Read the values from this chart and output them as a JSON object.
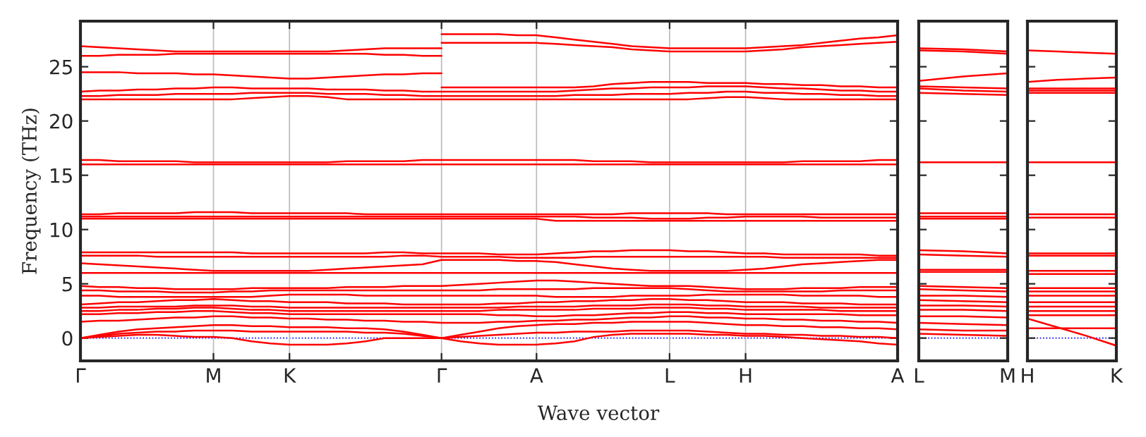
{
  "chart_data": [
    {
      "type": "line",
      "ylabel": "Frequency (THz)",
      "xlabel": "Wave vector",
      "grid": "x",
      "legend": false,
      "categories": [
        "Γ",
        null,
        null,
        null,
        null,
        null,
        null,
        "M",
        null,
        null,
        null,
        "K",
        null,
        null,
        null,
        null,
        null,
        null,
        null,
        "Γ",
        null,
        null,
        null,
        null,
        "A",
        null,
        null,
        null,
        null,
        null,
        null,
        "L",
        null,
        null,
        null,
        "H",
        null,
        null,
        null,
        null,
        null,
        null,
        null,
        "A"
      ],
      "ylim": [
        -2.1,
        29.2
      ],
      "yticks": [
        0,
        5,
        10,
        15,
        20,
        25
      ],
      "ref_lines": [
        {
          "axis": "y",
          "value": 0,
          "color": "#0000ff",
          "line_style": "dotted"
        }
      ],
      "series": [
        {
          "color": "#ff0000",
          "values": [
            26.9,
            26.8,
            26.7,
            26.6,
            26.5,
            26.4,
            26.4,
            26.4,
            26.4,
            26.4,
            26.4,
            26.4,
            26.4,
            26.4,
            26.5,
            26.6,
            26.7,
            26.7,
            26.7,
            26.7,
            null,
            null,
            null,
            null,
            null,
            null,
            null,
            null,
            null,
            null,
            null,
            null,
            null,
            null,
            null,
            null,
            null,
            null,
            null,
            null,
            null,
            null,
            null,
            null
          ]
        },
        {
          "color": "#ff0000",
          "values": [
            26.0,
            26.0,
            26.1,
            26.1,
            26.1,
            26.2,
            26.2,
            26.2,
            26.2,
            26.2,
            26.2,
            26.2,
            26.2,
            26.2,
            26.2,
            26.2,
            26.1,
            26.1,
            26.0,
            26.0,
            null,
            null,
            null,
            null,
            null,
            null,
            null,
            null,
            null,
            null,
            null,
            null,
            null,
            null,
            null,
            null,
            null,
            null,
            null,
            null,
            null,
            null,
            null,
            null
          ]
        },
        {
          "color": "#ff0000",
          "values": [
            24.5,
            24.5,
            24.5,
            24.4,
            24.4,
            24.4,
            24.3,
            24.3,
            24.2,
            24.1,
            24.0,
            23.9,
            23.9,
            24.0,
            24.1,
            24.2,
            24.3,
            24.3,
            24.4,
            24.4,
            null,
            null,
            null,
            null,
            null,
            null,
            null,
            null,
            null,
            null,
            null,
            null,
            null,
            null,
            null,
            null,
            null,
            null,
            null,
            null,
            null,
            null,
            null,
            null
          ]
        },
        {
          "color": "#ff0000",
          "values": [
            null,
            null,
            null,
            null,
            null,
            null,
            null,
            null,
            null,
            null,
            null,
            null,
            null,
            null,
            null,
            null,
            null,
            null,
            null,
            28.0,
            28.0,
            28.0,
            28.0,
            27.9,
            27.9,
            27.7,
            27.5,
            27.3,
            27.1,
            26.9,
            26.8,
            26.7,
            26.7,
            26.7,
            26.7,
            26.7,
            26.8,
            26.9,
            27.0,
            27.2,
            27.4,
            27.6,
            27.7,
            27.9
          ]
        },
        {
          "color": "#ff0000",
          "values": [
            null,
            null,
            null,
            null,
            null,
            null,
            null,
            null,
            null,
            null,
            null,
            null,
            null,
            null,
            null,
            null,
            null,
            null,
            null,
            27.2,
            27.2,
            27.2,
            27.2,
            27.2,
            27.2,
            27.1,
            27.0,
            26.9,
            26.8,
            26.6,
            26.5,
            26.4,
            26.4,
            26.4,
            26.4,
            26.4,
            26.5,
            26.6,
            26.8,
            26.9,
            27.0,
            27.1,
            27.2,
            27.3
          ]
        },
        {
          "color": "#ff0000",
          "values": [
            null,
            null,
            null,
            null,
            null,
            null,
            null,
            null,
            null,
            null,
            null,
            null,
            null,
            null,
            null,
            null,
            null,
            null,
            null,
            23.1,
            23.1,
            23.1,
            23.1,
            23.1,
            23.1,
            23.1,
            23.1,
            23.2,
            23.4,
            23.5,
            23.6,
            23.6,
            23.6,
            23.5,
            23.5,
            23.5,
            23.4,
            23.4,
            23.3,
            23.3,
            23.2,
            23.2,
            23.1,
            23.1
          ]
        },
        {
          "color": "#ff0000",
          "values": [
            22.7,
            22.8,
            22.8,
            22.9,
            22.9,
            23.0,
            23.0,
            23.1,
            23.1,
            23.0,
            23.0,
            23.0,
            23.0,
            22.9,
            22.9,
            22.9,
            22.8,
            22.8,
            22.7,
            22.7,
            22.7,
            22.7,
            22.7,
            22.7,
            22.7,
            22.7,
            22.8,
            22.9,
            23.0,
            23.0,
            23.1,
            23.1,
            23.1,
            23.2,
            23.2,
            23.2,
            23.1,
            23.0,
            23.0,
            22.9,
            22.8,
            22.8,
            22.7,
            22.7
          ]
        },
        {
          "color": "#ff0000",
          "values": [
            22.3,
            22.3,
            22.4,
            22.4,
            22.4,
            22.5,
            22.5,
            22.5,
            22.5,
            22.6,
            22.6,
            22.6,
            22.6,
            22.5,
            22.5,
            22.5,
            22.4,
            22.4,
            22.3,
            22.3,
            22.3,
            22.3,
            22.3,
            22.3,
            22.3,
            22.3,
            22.4,
            22.4,
            22.4,
            22.5,
            22.5,
            22.5,
            22.6,
            22.6,
            22.7,
            22.7,
            22.6,
            22.6,
            22.5,
            22.5,
            22.4,
            22.4,
            22.3,
            22.3
          ]
        },
        {
          "color": "#ff0000",
          "values": [
            22.0,
            22.0,
            22.0,
            22.0,
            22.0,
            22.0,
            22.0,
            22.0,
            22.0,
            22.1,
            22.2,
            22.3,
            22.3,
            22.2,
            22.0,
            22.0,
            22.0,
            22.0,
            22.0,
            22.0,
            22.0,
            22.0,
            22.0,
            22.0,
            22.0,
            22.0,
            22.0,
            22.0,
            22.0,
            22.0,
            22.0,
            22.0,
            22.0,
            22.1,
            22.2,
            22.2,
            22.1,
            22.0,
            22.0,
            22.0,
            22.0,
            22.0,
            22.0,
            22.0
          ]
        },
        {
          "color": "#ff0000",
          "values": [
            16.4,
            16.4,
            16.3,
            16.3,
            16.3,
            16.3,
            16.2,
            16.2,
            16.2,
            16.2,
            16.2,
            16.2,
            16.2,
            16.2,
            16.3,
            16.3,
            16.3,
            16.3,
            16.4,
            16.4,
            16.4,
            16.4,
            16.4,
            16.4,
            16.4,
            16.4,
            16.4,
            16.3,
            16.3,
            16.3,
            16.2,
            16.2,
            16.2,
            16.2,
            16.2,
            16.2,
            16.2,
            16.2,
            16.3,
            16.3,
            16.3,
            16.3,
            16.4,
            16.4
          ]
        },
        {
          "color": "#ff0000",
          "values": [
            16.0,
            16.0,
            16.0,
            16.0,
            16.0,
            16.0,
            16.0,
            16.0,
            16.0,
            16.0,
            16.0,
            16.0,
            16.0,
            16.0,
            16.0,
            16.0,
            16.0,
            16.0,
            16.0,
            16.0,
            16.0,
            16.0,
            16.0,
            16.0,
            16.0,
            16.0,
            16.0,
            16.0,
            16.0,
            16.0,
            16.0,
            16.0,
            16.0,
            16.0,
            16.0,
            16.0,
            16.0,
            16.0,
            16.0,
            16.0,
            16.0,
            16.0,
            16.0,
            16.0
          ]
        },
        {
          "color": "#ff0000",
          "values": [
            11.4,
            11.4,
            11.5,
            11.5,
            11.5,
            11.5,
            11.6,
            11.6,
            11.6,
            11.5,
            11.5,
            11.5,
            11.5,
            11.5,
            11.5,
            11.4,
            11.4,
            11.4,
            11.4,
            11.4,
            11.4,
            11.4,
            11.4,
            11.4,
            11.4,
            11.4,
            11.4,
            11.4,
            11.4,
            11.5,
            11.5,
            11.5,
            11.5,
            11.5,
            11.4,
            11.4,
            11.4,
            11.4,
            11.4,
            11.4,
            11.4,
            11.4,
            11.4,
            11.4
          ]
        },
        {
          "color": "#ff0000",
          "values": [
            11.2,
            11.2,
            11.2,
            11.2,
            11.2,
            11.2,
            11.2,
            11.2,
            11.2,
            11.2,
            11.2,
            11.2,
            11.2,
            11.2,
            11.2,
            11.2,
            11.2,
            11.2,
            11.2,
            11.2,
            11.2,
            11.2,
            11.2,
            11.2,
            11.2,
            11.2,
            11.2,
            11.1,
            11.1,
            11.1,
            11.0,
            11.0,
            11.0,
            11.1,
            11.1,
            11.2,
            11.2,
            11.2,
            11.2,
            11.1,
            11.1,
            11.1,
            11.1,
            11.1
          ]
        },
        {
          "color": "#ff0000",
          "values": [
            11.0,
            11.0,
            11.0,
            11.0,
            11.0,
            11.0,
            11.0,
            11.0,
            11.0,
            11.0,
            11.0,
            11.0,
            11.0,
            11.0,
            11.0,
            11.0,
            11.0,
            11.0,
            11.0,
            11.0,
            11.0,
            11.0,
            11.0,
            11.0,
            11.0,
            10.8,
            10.8,
            10.8,
            10.8,
            10.8,
            10.8,
            10.8,
            10.8,
            10.8,
            10.8,
            10.8,
            10.8,
            10.8,
            10.8,
            10.8,
            10.8,
            10.8,
            10.8,
            10.8
          ]
        },
        {
          "color": "#ff0000",
          "values": [
            7.9,
            7.9,
            7.9,
            7.9,
            7.9,
            7.9,
            7.9,
            7.9,
            7.9,
            7.8,
            7.8,
            7.8,
            7.8,
            7.8,
            7.8,
            7.8,
            7.9,
            7.9,
            7.8,
            7.8,
            7.8,
            7.8,
            7.7,
            7.7,
            7.7,
            7.8,
            7.9,
            8.0,
            8.0,
            8.1,
            8.1,
            8.1,
            8.0,
            8.0,
            7.9,
            7.8,
            7.8,
            7.7,
            7.7,
            7.7,
            7.7,
            7.7,
            7.6,
            7.6
          ]
        },
        {
          "color": "#ff0000",
          "values": [
            7.6,
            7.6,
            7.6,
            7.6,
            7.5,
            7.5,
            7.5,
            7.5,
            7.5,
            7.5,
            7.5,
            7.5,
            7.5,
            7.5,
            7.5,
            7.5,
            7.5,
            7.6,
            7.6,
            7.5,
            7.5,
            7.5,
            7.5,
            7.4,
            7.4,
            7.4,
            7.4,
            7.5,
            7.5,
            7.5,
            7.5,
            7.5,
            7.5,
            7.5,
            7.5,
            7.5,
            7.5,
            7.4,
            7.4,
            7.4,
            7.4,
            7.4,
            7.4,
            7.4
          ]
        },
        {
          "color": "#ff0000",
          "values": [
            6.9,
            6.8,
            6.7,
            6.6,
            6.5,
            6.4,
            6.3,
            6.2,
            6.2,
            6.2,
            6.2,
            6.2,
            6.2,
            6.3,
            6.4,
            6.5,
            6.6,
            6.7,
            6.8,
            7.2,
            7.2,
            7.2,
            7.2,
            7.1,
            7.1,
            7.0,
            6.8,
            6.6,
            6.4,
            6.3,
            6.2,
            6.2,
            6.2,
            6.2,
            6.2,
            6.3,
            6.4,
            6.6,
            6.8,
            6.9,
            7.0,
            7.1,
            7.2,
            7.2
          ]
        },
        {
          "color": "#ff0000",
          "values": [
            6.0,
            6.0,
            6.0,
            6.0,
            6.0,
            6.0,
            6.0,
            6.0,
            6.0,
            6.0,
            6.0,
            6.0,
            6.0,
            6.0,
            6.0,
            6.0,
            6.0,
            6.0,
            6.0,
            6.0,
            6.0,
            6.0,
            6.0,
            6.0,
            6.0,
            6.0,
            6.0,
            6.0,
            6.0,
            6.0,
            6.0,
            6.0,
            6.0,
            6.0,
            6.0,
            6.0,
            6.0,
            6.0,
            6.0,
            6.0,
            6.0,
            6.0,
            6.0,
            6.0
          ]
        },
        {
          "color": "#ff0000",
          "values": [
            4.8,
            4.7,
            4.7,
            4.6,
            4.6,
            4.5,
            4.5,
            4.5,
            4.5,
            4.6,
            4.6,
            4.6,
            4.6,
            4.6,
            4.7,
            4.7,
            4.7,
            4.8,
            4.8,
            4.8,
            4.9,
            5.0,
            5.1,
            5.2,
            5.3,
            5.3,
            5.2,
            5.1,
            5.0,
            4.9,
            4.8,
            4.8,
            4.8,
            4.7,
            4.6,
            4.5,
            4.5,
            4.5,
            4.6,
            4.6,
            4.6,
            4.7,
            4.7,
            4.7
          ]
        },
        {
          "color": "#ff0000",
          "values": [
            4.4,
            4.4,
            4.3,
            4.3,
            4.3,
            4.2,
            4.2,
            4.2,
            4.3,
            4.3,
            4.4,
            4.4,
            4.4,
            4.4,
            4.4,
            4.4,
            4.4,
            4.4,
            4.4,
            4.4,
            4.4,
            4.4,
            4.5,
            4.5,
            4.5,
            4.5,
            4.5,
            4.6,
            4.6,
            4.6,
            4.6,
            4.6,
            4.5,
            4.4,
            4.3,
            4.3,
            4.3,
            4.3,
            4.3,
            4.3,
            4.4,
            4.4,
            4.4,
            4.4
          ]
        },
        {
          "color": "#ff0000",
          "values": [
            3.9,
            3.9,
            3.8,
            3.8,
            3.8,
            3.8,
            3.8,
            3.8,
            3.8,
            3.8,
            3.9,
            4.0,
            4.0,
            4.0,
            4.0,
            3.9,
            3.9,
            3.9,
            3.9,
            3.9,
            3.9,
            3.9,
            3.9,
            3.9,
            3.9,
            3.8,
            3.8,
            3.8,
            3.8,
            3.9,
            3.9,
            3.9,
            3.9,
            4.0,
            4.0,
            4.0,
            4.0,
            4.0,
            3.9,
            3.9,
            3.9,
            3.9,
            3.8,
            3.8
          ]
        },
        {
          "color": "#ff0000",
          "values": [
            3.1,
            3.2,
            3.3,
            3.3,
            3.4,
            3.5,
            3.5,
            3.6,
            3.5,
            3.4,
            3.4,
            3.3,
            3.3,
            3.3,
            3.2,
            3.2,
            3.2,
            3.1,
            3.1,
            3.1,
            3.1,
            3.1,
            3.2,
            3.2,
            3.3,
            3.3,
            3.4,
            3.4,
            3.5,
            3.5,
            3.6,
            3.6,
            3.5,
            3.5,
            3.4,
            3.3,
            3.3,
            3.3,
            3.2,
            3.2,
            3.2,
            3.1,
            3.1,
            3.1
          ]
        },
        {
          "color": "#ff0000",
          "values": [
            2.8,
            2.8,
            2.9,
            2.9,
            2.9,
            2.9,
            3.0,
            3.0,
            3.0,
            2.9,
            2.9,
            2.8,
            2.8,
            2.8,
            2.8,
            2.8,
            2.8,
            2.8,
            2.8,
            2.8,
            2.8,
            2.8,
            2.8,
            2.9,
            2.9,
            2.9,
            2.9,
            3.0,
            3.0,
            3.0,
            3.1,
            3.1,
            3.1,
            3.0,
            3.0,
            2.9,
            2.9,
            2.9,
            2.9,
            2.8,
            2.8,
            2.8,
            2.8,
            2.8
          ]
        },
        {
          "color": "#ff0000",
          "values": [
            2.5,
            2.5,
            2.6,
            2.6,
            2.7,
            2.7,
            2.8,
            2.8,
            2.7,
            2.6,
            2.6,
            2.5,
            2.5,
            2.5,
            2.5,
            2.5,
            2.5,
            2.5,
            2.5,
            2.5,
            2.5,
            2.5,
            2.6,
            2.6,
            2.6,
            2.6,
            2.6,
            2.7,
            2.7,
            2.7,
            2.8,
            2.8,
            2.8,
            2.7,
            2.7,
            2.6,
            2.6,
            2.6,
            2.6,
            2.6,
            2.5,
            2.5,
            2.5,
            2.5
          ]
        },
        {
          "color": "#ff0000",
          "values": [
            2.2,
            2.2,
            2.3,
            2.3,
            2.4,
            2.4,
            2.5,
            2.5,
            2.4,
            2.3,
            2.3,
            2.2,
            2.2,
            2.2,
            2.2,
            2.2,
            2.2,
            2.2,
            2.2,
            2.2,
            2.2,
            2.2,
            2.1,
            2.1,
            2.0,
            2.0,
            2.1,
            2.1,
            2.2,
            2.3,
            2.3,
            2.4,
            2.4,
            2.3,
            2.3,
            2.2,
            2.2,
            2.2,
            2.2,
            2.2,
            2.2,
            2.1,
            2.1,
            2.1
          ]
        },
        {
          "color": "#ff0000",
          "values": [
            1.5,
            1.6,
            1.6,
            1.7,
            1.8,
            1.9,
            1.9,
            2.0,
            2.0,
            1.9,
            1.9,
            1.8,
            1.8,
            1.7,
            1.7,
            1.6,
            1.6,
            1.5,
            1.5,
            1.4,
            1.4,
            1.4,
            1.5,
            1.5,
            1.6,
            1.6,
            1.7,
            1.7,
            1.8,
            1.9,
            1.9,
            2.0,
            2.0,
            1.9,
            1.9,
            1.8,
            1.8,
            1.7,
            1.7,
            1.6,
            1.6,
            1.5,
            1.5,
            1.4
          ]
        },
        {
          "color": "#ff0000",
          "values": [
            0.0,
            0.3,
            0.6,
            0.8,
            0.9,
            1.0,
            1.1,
            1.2,
            1.2,
            1.1,
            1.1,
            1.0,
            1.0,
            1.0,
            0.9,
            0.9,
            0.8,
            0.6,
            0.3,
            0.0,
            0.3,
            0.6,
            0.9,
            1.1,
            1.2,
            1.3,
            1.3,
            1.4,
            1.4,
            1.5,
            1.5,
            1.5,
            1.5,
            1.4,
            1.3,
            1.2,
            1.2,
            1.1,
            1.1,
            1.0,
            1.0,
            0.9,
            0.9,
            0.8
          ]
        },
        {
          "color": "#ff0000",
          "values": [
            0.0,
            0.2,
            0.4,
            0.5,
            0.6,
            0.6,
            0.7,
            0.7,
            0.7,
            0.6,
            0.6,
            0.6,
            0.6,
            0.6,
            0.6,
            0.5,
            0.5,
            0.4,
            0.2,
            0.0,
            0.1,
            0.2,
            0.3,
            0.4,
            0.5,
            0.5,
            0.6,
            0.6,
            0.6,
            0.7,
            0.7,
            0.7,
            0.7,
            0.6,
            0.5,
            0.4,
            0.4,
            0.3,
            0.3,
            0.2,
            0.2,
            0.1,
            0.1,
            0.0
          ]
        },
        {
          "color": "#ff0000",
          "values": [
            0.0,
            0.1,
            0.2,
            0.3,
            0.3,
            0.2,
            0.1,
            0.1,
            0.0,
            -0.3,
            -0.5,
            -0.6,
            -0.6,
            -0.6,
            -0.5,
            -0.3,
            0.0,
            0.0,
            0.0,
            0.0,
            -0.3,
            -0.5,
            -0.6,
            -0.6,
            -0.6,
            -0.5,
            -0.3,
            0.1,
            0.3,
            0.4,
            0.4,
            0.4,
            0.4,
            0.3,
            0.3,
            0.2,
            0.2,
            0.1,
            0.0,
            -0.1,
            -0.2,
            -0.3,
            -0.5,
            -0.6
          ]
        }
      ]
    },
    {
      "type": "line",
      "legend": false,
      "tick_labels": "x",
      "categories": [
        "L",
        null,
        "M"
      ],
      "ylim": [
        -2.1,
        29.2
      ],
      "yticks": [
        0,
        5,
        10,
        15,
        20,
        25
      ],
      "ref_lines": [
        {
          "axis": "y",
          "value": 0,
          "color": "#0000ff",
          "line_style": "dotted"
        }
      ],
      "series": [
        {
          "color": "#ff0000",
          "values": [
            26.7,
            26.6,
            26.4
          ]
        },
        {
          "color": "#ff0000",
          "values": [
            26.5,
            26.4,
            26.2
          ]
        },
        {
          "color": "#ff0000",
          "values": [
            23.7,
            24.1,
            24.4
          ]
        },
        {
          "color": "#ff0000",
          "values": [
            23.2,
            23.1,
            23.0
          ]
        },
        {
          "color": "#ff0000",
          "values": [
            23.0,
            22.8,
            22.7
          ]
        },
        {
          "color": "#ff0000",
          "values": [
            22.6,
            22.5,
            22.4
          ]
        },
        {
          "color": "#ff0000",
          "values": [
            16.2,
            16.2,
            16.2
          ]
        },
        {
          "color": "#ff0000",
          "values": [
            11.5,
            11.5,
            11.5
          ]
        },
        {
          "color": "#ff0000",
          "values": [
            11.2,
            11.2,
            11.2
          ]
        },
        {
          "color": "#ff0000",
          "values": [
            11.0,
            11.0,
            11.0
          ]
        },
        {
          "color": "#ff0000",
          "values": [
            8.1,
            8.0,
            7.8
          ]
        },
        {
          "color": "#ff0000",
          "values": [
            7.7,
            7.6,
            7.5
          ]
        },
        {
          "color": "#ff0000",
          "values": [
            6.3,
            6.3,
            6.3
          ]
        },
        {
          "color": "#ff0000",
          "values": [
            6.1,
            6.1,
            6.1
          ]
        },
        {
          "color": "#ff0000",
          "values": [
            4.8,
            4.7,
            4.6
          ]
        },
        {
          "color": "#ff0000",
          "values": [
            4.5,
            4.4,
            4.3
          ]
        },
        {
          "color": "#ff0000",
          "values": [
            3.9,
            3.9,
            3.8
          ]
        },
        {
          "color": "#ff0000",
          "values": [
            3.5,
            3.4,
            3.3
          ]
        },
        {
          "color": "#ff0000",
          "values": [
            3.0,
            3.0,
            2.9
          ]
        },
        {
          "color": "#ff0000",
          "values": [
            2.6,
            2.6,
            2.5
          ]
        },
        {
          "color": "#ff0000",
          "values": [
            2.0,
            2.0,
            1.9
          ]
        },
        {
          "color": "#ff0000",
          "values": [
            1.4,
            1.3,
            1.2
          ]
        },
        {
          "color": "#ff0000",
          "values": [
            0.8,
            0.7,
            0.7
          ]
        },
        {
          "color": "#ff0000",
          "values": [
            0.4,
            0.3,
            0.2
          ]
        }
      ]
    },
    {
      "type": "line",
      "legend": false,
      "tick_labels": "x",
      "categories": [
        "H",
        null,
        null,
        "K"
      ],
      "ylim": [
        -2.1,
        29.2
      ],
      "yticks": [
        0,
        5,
        10,
        15,
        20,
        25
      ],
      "ref_lines": [
        {
          "axis": "y",
          "value": 0,
          "color": "#0000ff",
          "line_style": "dotted"
        }
      ],
      "series": [
        {
          "color": "#ff0000",
          "values": [
            26.5,
            26.4,
            26.3,
            26.2
          ]
        },
        {
          "color": "#ff0000",
          "values": [
            23.6,
            23.8,
            23.9,
            24.0
          ]
        },
        {
          "color": "#ff0000",
          "values": [
            23.0,
            23.0,
            23.0,
            23.0
          ]
        },
        {
          "color": "#ff0000",
          "values": [
            22.8,
            22.8,
            22.8,
            22.8
          ]
        },
        {
          "color": "#ff0000",
          "values": [
            22.6,
            22.6,
            22.6,
            22.6
          ]
        },
        {
          "color": "#ff0000",
          "values": [
            16.2,
            16.2,
            16.2,
            16.2
          ]
        },
        {
          "color": "#ff0000",
          "values": [
            11.4,
            11.4,
            11.4,
            11.4
          ]
        },
        {
          "color": "#ff0000",
          "values": [
            11.1,
            11.1,
            11.1,
            11.1
          ]
        },
        {
          "color": "#ff0000",
          "values": [
            7.8,
            7.8,
            7.8,
            7.8
          ]
        },
        {
          "color": "#ff0000",
          "values": [
            7.6,
            7.6,
            7.6,
            7.6
          ]
        },
        {
          "color": "#ff0000",
          "values": [
            6.2,
            6.2,
            6.2,
            6.2
          ]
        },
        {
          "color": "#ff0000",
          "values": [
            5.9,
            5.9,
            5.9,
            5.9
          ]
        },
        {
          "color": "#ff0000",
          "values": [
            4.6,
            4.6,
            4.6,
            4.6
          ]
        },
        {
          "color": "#ff0000",
          "values": [
            4.3,
            4.3,
            4.3,
            4.3
          ]
        },
        {
          "color": "#ff0000",
          "values": [
            3.9,
            3.9,
            3.9,
            3.9
          ]
        },
        {
          "color": "#ff0000",
          "values": [
            3.3,
            3.3,
            3.3,
            3.3
          ]
        },
        {
          "color": "#ff0000",
          "values": [
            2.9,
            2.9,
            2.9,
            2.9
          ]
        },
        {
          "color": "#ff0000",
          "values": [
            2.5,
            2.5,
            2.5,
            2.5
          ]
        },
        {
          "color": "#ff0000",
          "values": [
            2.1,
            2.1,
            2.1,
            2.1
          ]
        },
        {
          "color": "#ff0000",
          "values": [
            1.8,
            1.0,
            0.2,
            -0.7
          ]
        },
        {
          "color": "#ff0000",
          "values": [
            0.9,
            0.9,
            0.9,
            0.9
          ]
        }
      ]
    }
  ]
}
